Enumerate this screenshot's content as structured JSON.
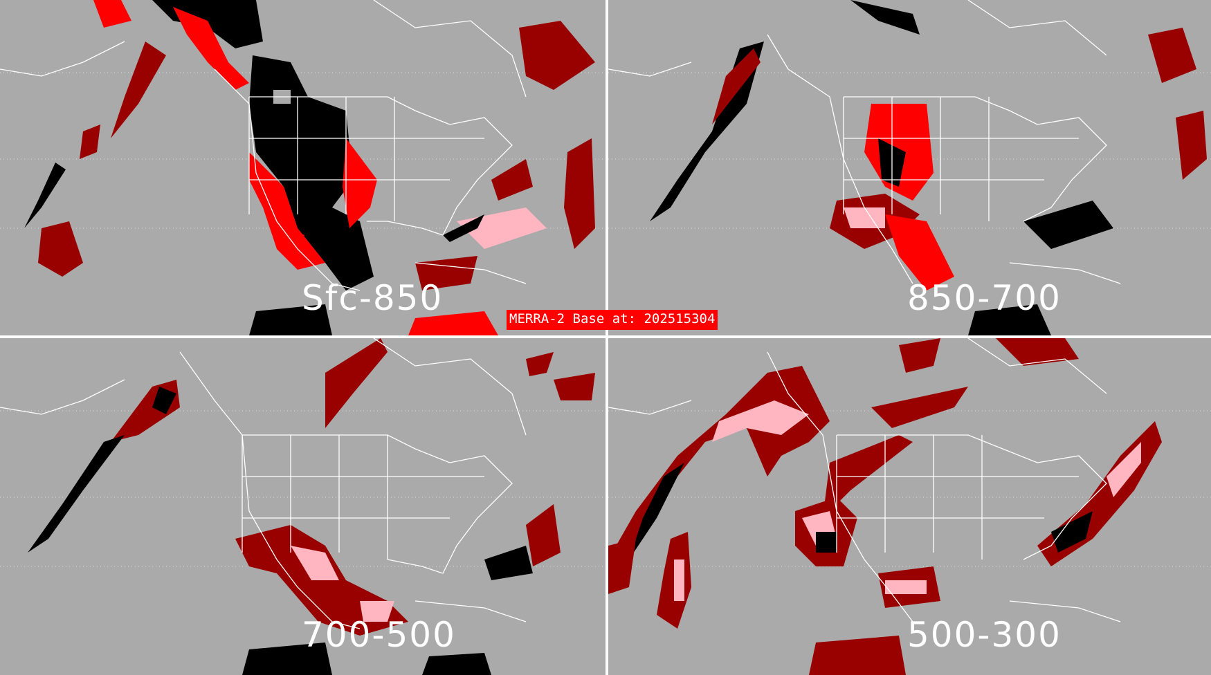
{
  "banner": {
    "text": "MERRA-2 Base at: 202515304"
  },
  "panels": [
    {
      "id": "tl",
      "layer": "Sfc-850"
    },
    {
      "id": "tr",
      "layer": "850-700"
    },
    {
      "id": "bl",
      "layer": "700-500"
    },
    {
      "id": "br",
      "layer": "500-300"
    }
  ],
  "legend_colors": {
    "background": "#aaaaaa",
    "coastline": "#ffffff",
    "black_category": "#000000",
    "bright_red_category": "#ff0000",
    "dark_red_category": "#990000",
    "pink_category": "#ffb6c1"
  },
  "map": {
    "region": "North America and adjacent Pacific/Atlantic",
    "graticule": "dotted white"
  }
}
